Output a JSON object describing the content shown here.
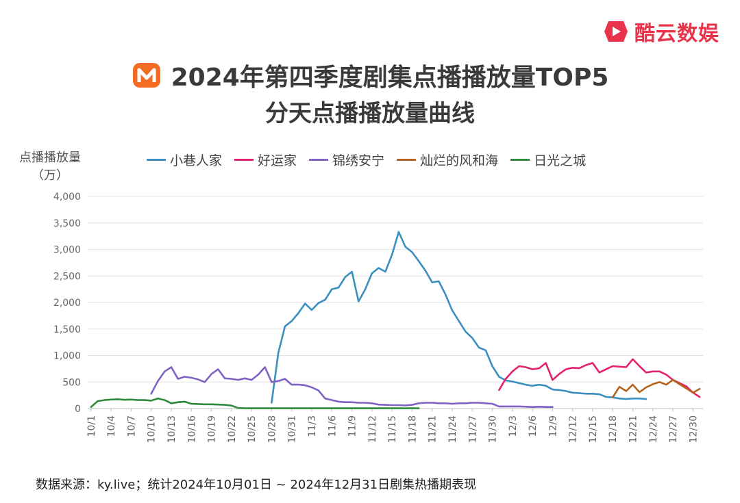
{
  "brand": {
    "name": "酷云数娱",
    "color": "#e8334a",
    "logo_icon": "play-logo-icon"
  },
  "header": {
    "logo_icon": "mango-tv-logo-icon",
    "logo_color": "#f36c21",
    "title": "2024年第四季度剧集点播播放量TOP5",
    "subtitle": "分天点播播放量曲线"
  },
  "footer": {
    "source": "数据来源：ky.live；统计2024年10月01日 ~ 2024年12月31日剧集热播期表现"
  },
  "chart_data": {
    "type": "line",
    "ylabel": [
      "点播播放量",
      "（万）"
    ],
    "ylim": [
      0,
      4000
    ],
    "yticks": [
      "0",
      "500",
      "1,000",
      "1,500",
      "2,000",
      "2,500",
      "3,000",
      "3,500",
      "4,000"
    ],
    "ytick_values": [
      0,
      500,
      1000,
      1500,
      2000,
      2500,
      3000,
      3500,
      4000
    ],
    "x_start": "10/1",
    "x_end": "12/31",
    "xticks": [
      "10/1",
      "10/4",
      "10/7",
      "10/10",
      "10/13",
      "10/16",
      "10/19",
      "10/22",
      "10/25",
      "10/28",
      "10/31",
      "11/3",
      "11/6",
      "11/9",
      "11/12",
      "11/15",
      "11/18",
      "11/21",
      "11/24",
      "11/27",
      "11/30",
      "12/3",
      "12/6",
      "12/9",
      "12/12",
      "12/15",
      "12/18",
      "12/21",
      "12/24",
      "12/27",
      "12/30"
    ],
    "grid": true,
    "legend_position": "top",
    "series": [
      {
        "name": "小巷人家",
        "color": "#3a8fc0",
        "start": "10/28",
        "values": [
          110,
          1050,
          1550,
          1650,
          1800,
          1980,
          1860,
          1990,
          2050,
          2250,
          2280,
          2480,
          2580,
          2020,
          2250,
          2550,
          2650,
          2580,
          2900,
          3330,
          3050,
          2950,
          2780,
          2600,
          2380,
          2400,
          2150,
          1850,
          1650,
          1450,
          1330,
          1150,
          1100,
          800,
          600,
          530,
          510,
          480,
          450,
          430,
          450,
          430,
          360,
          350,
          330,
          300,
          290,
          280,
          280,
          270,
          220,
          210,
          190,
          180,
          190,
          190,
          180
        ]
      },
      {
        "name": "好运家",
        "color": "#e5206f",
        "start": "12/1",
        "values": [
          350,
          560,
          700,
          800,
          780,
          740,
          760,
          860,
          540,
          650,
          740,
          770,
          760,
          820,
          860,
          680,
          740,
          800,
          790,
          780,
          930,
          800,
          680,
          700,
          700,
          640,
          540,
          480,
          420,
          300,
          220
        ]
      },
      {
        "name": "锦绣安宁",
        "color": "#7f62c3",
        "start": "10/10",
        "values": [
          280,
          520,
          700,
          780,
          560,
          600,
          580,
          550,
          500,
          650,
          740,
          570,
          560,
          540,
          570,
          540,
          640,
          780,
          500,
          520,
          560,
          450,
          450,
          440,
          400,
          340,
          190,
          160,
          130,
          120,
          120,
          110,
          110,
          100,
          75,
          70,
          65,
          65,
          60,
          70,
          100,
          110,
          110,
          100,
          100,
          90,
          100,
          100,
          110,
          110,
          100,
          90,
          40,
          40,
          40,
          40,
          35,
          30,
          35,
          30,
          30
        ]
      },
      {
        "name": "灿烂的风和海",
        "color": "#b5621c",
        "start": "12/18",
        "values": [
          210,
          410,
          330,
          450,
          310,
          400,
          460,
          500,
          450,
          540,
          460,
          380,
          300,
          370
        ]
      },
      {
        "name": "日光之城",
        "color": "#2e8b3a",
        "start": "10/1",
        "values": [
          30,
          140,
          160,
          170,
          175,
          165,
          170,
          160,
          160,
          150,
          190,
          160,
          100,
          120,
          130,
          90,
          85,
          80,
          80,
          75,
          70,
          55,
          10,
          5,
          5,
          5,
          5,
          5,
          5,
          5,
          5,
          5,
          5,
          5,
          5,
          5,
          5,
          5,
          5,
          5,
          5,
          5,
          5,
          5,
          5,
          5,
          5,
          5,
          5,
          5
        ]
      }
    ]
  }
}
